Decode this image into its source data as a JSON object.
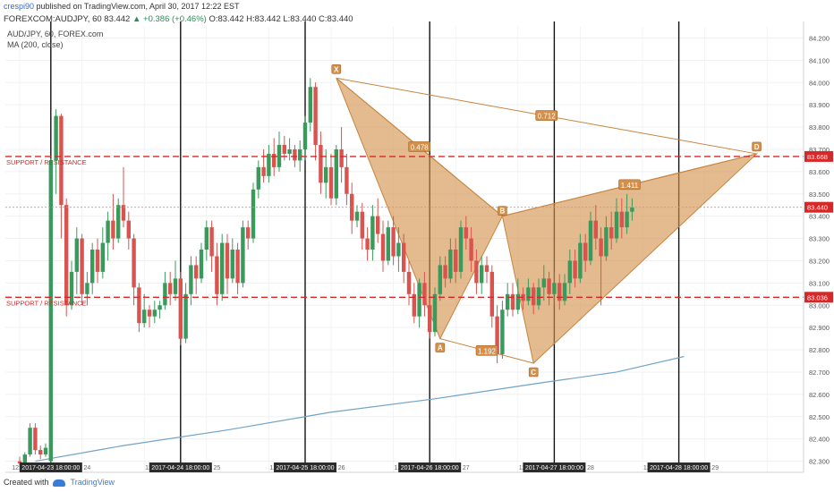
{
  "header": {
    "user": "crespi90",
    "published": " published on TradingView.com, April 30, 2017 12:22 EST",
    "ohlc_symbol": "FOREXCOM:AUDJPY, 60 ",
    "ohlc_price": "83.442",
    "ohlc_change": "▲ +0.386 (+0.46%)",
    "ohlc_values": " O:83.442 H:83.442 L:83.440 C:83.440",
    "symbol_line": "AUD/JPY, 60, FOREX.com",
    "ma_line": "MA (200, close)"
  },
  "footer": {
    "created": "Created with",
    "brand": "TradingView"
  },
  "colors": {
    "up": "#3a9a5b",
    "down": "#d9534f",
    "pattern_fill": "#d4904a",
    "pattern_stroke": "#c8843f",
    "support": "#d62828",
    "ma": "#6fa3c8",
    "session_line": "#111111",
    "price_label": "#d62828"
  },
  "chart_data": {
    "type": "candlestick",
    "symbol": "AUD/JPY",
    "interval": "60",
    "ylim": [
      82.25,
      84.25
    ],
    "y_ticks": [
      "82.300",
      "82.400",
      "82.500",
      "82.600",
      "82.700",
      "82.800",
      "82.900",
      "83.000",
      "83.100",
      "83.200",
      "83.300",
      "83.400",
      "83.500",
      "83.600",
      "83.700",
      "83.800",
      "83.900",
      "84.000",
      "84.100",
      "84.200"
    ],
    "x_labels": [
      {
        "text": "12:00",
        "i": 0
      },
      {
        "text": "2017-04-23 18:00:00",
        "i": 6,
        "highlight": true
      },
      {
        "text": "24",
        "i": 13
      },
      {
        "text": "12:",
        "i": 25
      },
      {
        "text": "2017-04-24 18:00:00",
        "i": 31,
        "highlight": true
      },
      {
        "text": "25",
        "i": 38
      },
      {
        "text": "12:",
        "i": 49
      },
      {
        "text": "2017-04-25 18:00:00",
        "i": 55,
        "highlight": true
      },
      {
        "text": "26",
        "i": 62
      },
      {
        "text": "12:",
        "i": 73
      },
      {
        "text": "2017-04-26 18:00:00",
        "i": 79,
        "highlight": true
      },
      {
        "text": "27",
        "i": 86
      },
      {
        "text": "12:",
        "i": 97
      },
      {
        "text": "2017-04-27 18:00:00",
        "i": 103,
        "highlight": true
      },
      {
        "text": "28",
        "i": 110
      },
      {
        "text": "12:",
        "i": 121
      },
      {
        "text": "2017-04-28 18:00:00",
        "i": 127,
        "highlight": true
      },
      {
        "text": "29",
        "i": 134
      }
    ],
    "session_lines": [
      6,
      31,
      55,
      79,
      103,
      127
    ],
    "current_price": {
      "value": 83.44,
      "label": "83.440"
    },
    "support_resistance": [
      {
        "value": 83.668,
        "label": "83.668",
        "text": "SUPPORT / RESISTANCE"
      },
      {
        "value": 83.036,
        "label": "83.036",
        "text": "SUPPORT / RESISTANCE"
      }
    ],
    "pattern": {
      "points": [
        {
          "name": "X",
          "i": 61,
          "price": 84.02
        },
        {
          "name": "A",
          "i": 81,
          "price": 82.85
        },
        {
          "name": "B",
          "i": 93,
          "price": 83.4
        },
        {
          "name": "C",
          "i": 99,
          "price": 82.74
        },
        {
          "name": "D",
          "i": 142,
          "price": 83.68
        }
      ],
      "ratios": [
        {
          "text": "0.478",
          "from": "X",
          "to": "B"
        },
        {
          "text": "1.192",
          "from": "A",
          "to": "C"
        },
        {
          "text": "1.411",
          "from": "B",
          "to": "D"
        },
        {
          "text": "0.712",
          "from": "X",
          "to": "D"
        }
      ]
    },
    "ma200": [
      [
        3,
        82.3
      ],
      [
        20,
        82.37
      ],
      [
        40,
        82.44
      ],
      [
        60,
        82.52
      ],
      [
        80,
        82.58
      ],
      [
        100,
        82.65
      ],
      [
        115,
        82.7
      ],
      [
        128,
        82.77
      ]
    ],
    "candles": [
      [
        82.3,
        82.29,
        82.32,
        82.28
      ],
      [
        82.29,
        82.33,
        82.34,
        82.28
      ],
      [
        82.33,
        82.45,
        82.47,
        82.32
      ],
      [
        82.45,
        82.35,
        82.47,
        82.33
      ],
      [
        82.35,
        82.33,
        82.37,
        82.31
      ],
      [
        82.33,
        82.36,
        82.38,
        82.32
      ],
      [
        82.3,
        83.65,
        83.66,
        82.28
      ],
      [
        83.65,
        83.85,
        83.88,
        83.5
      ],
      [
        83.85,
        83.45,
        83.86,
        83.3
      ],
      [
        83.45,
        83.0,
        83.48,
        82.95
      ],
      [
        83.0,
        83.15,
        83.2,
        82.98
      ],
      [
        83.15,
        83.3,
        83.35,
        83.05
      ],
      [
        83.3,
        83.05,
        83.32,
        83.0
      ],
      [
        83.05,
        83.1,
        83.15,
        83.0
      ],
      [
        83.1,
        83.25,
        83.28,
        83.05
      ],
      [
        83.25,
        83.15,
        83.3,
        83.1
      ],
      [
        83.15,
        83.28,
        83.35,
        83.12
      ],
      [
        83.28,
        83.38,
        83.42,
        83.2
      ],
      [
        83.38,
        83.3,
        83.5,
        83.25
      ],
      [
        83.3,
        83.45,
        83.48,
        83.28
      ],
      [
        83.45,
        83.38,
        83.62,
        83.35
      ],
      [
        83.38,
        83.3,
        83.42,
        83.25
      ],
      [
        83.3,
        83.08,
        83.32,
        83.0
      ],
      [
        83.08,
        82.92,
        83.1,
        82.88
      ],
      [
        82.92,
        82.98,
        83.05,
        82.9
      ],
      [
        82.98,
        82.95,
        83.0,
        82.9
      ],
      [
        82.95,
        82.98,
        83.02,
        82.92
      ],
      [
        82.98,
        83.0,
        83.02,
        82.94
      ],
      [
        83.0,
        83.1,
        83.15,
        82.98
      ],
      [
        83.1,
        83.05,
        83.15,
        83.0
      ],
      [
        83.05,
        83.12,
        83.2,
        83.02
      ],
      [
        83.12,
        82.85,
        83.15,
        82.82
      ],
      [
        82.85,
        83.05,
        83.1,
        82.83
      ],
      [
        83.05,
        83.18,
        83.22,
        83.0
      ],
      [
        83.18,
        83.12,
        83.22,
        83.05
      ],
      [
        83.12,
        83.25,
        83.28,
        83.1
      ],
      [
        83.25,
        83.35,
        83.38,
        83.2
      ],
      [
        83.35,
        83.22,
        83.38,
        83.15
      ],
      [
        83.22,
        83.05,
        83.28,
        83.0
      ],
      [
        83.05,
        83.28,
        83.32,
        83.02
      ],
      [
        83.28,
        83.12,
        83.32,
        83.05
      ],
      [
        83.12,
        83.25,
        83.3,
        83.1
      ],
      [
        83.25,
        83.1,
        83.28,
        83.05
      ],
      [
        83.1,
        83.35,
        83.38,
        83.08
      ],
      [
        83.35,
        83.3,
        83.38,
        83.25
      ],
      [
        83.3,
        83.52,
        83.55,
        83.28
      ],
      [
        83.52,
        83.62,
        83.65,
        83.48
      ],
      [
        83.62,
        83.58,
        83.7,
        83.55
      ],
      [
        83.58,
        83.68,
        83.72,
        83.55
      ],
      [
        83.68,
        83.62,
        83.75,
        83.58
      ],
      [
        83.62,
        83.72,
        83.78,
        83.6
      ],
      [
        83.72,
        83.68,
        83.76,
        83.65
      ],
      [
        83.68,
        83.7,
        83.75,
        83.65
      ],
      [
        83.7,
        83.65,
        83.72,
        83.62
      ],
      [
        83.65,
        83.7,
        83.74,
        83.6
      ],
      [
        83.7,
        83.82,
        83.85,
        83.65
      ],
      [
        83.82,
        83.98,
        84.02,
        83.78
      ],
      [
        83.98,
        83.72,
        84.0,
        83.65
      ],
      [
        83.72,
        83.55,
        83.78,
        83.5
      ],
      [
        83.55,
        83.62,
        83.7,
        83.48
      ],
      [
        83.62,
        83.48,
        83.68,
        83.45
      ],
      [
        83.48,
        83.7,
        83.72,
        83.45
      ],
      [
        83.7,
        83.62,
        83.8,
        83.55
      ],
      [
        83.62,
        83.5,
        83.68,
        83.45
      ],
      [
        83.5,
        83.38,
        83.55,
        83.32
      ],
      [
        83.38,
        83.42,
        83.45,
        83.35
      ],
      [
        83.42,
        83.3,
        83.46,
        83.25
      ],
      [
        83.3,
        83.25,
        83.35,
        83.2
      ],
      [
        83.25,
        83.4,
        83.45,
        83.2
      ],
      [
        83.4,
        83.32,
        83.48,
        83.28
      ],
      [
        83.32,
        83.2,
        83.38,
        83.15
      ],
      [
        83.2,
        83.35,
        83.38,
        83.18
      ],
      [
        83.35,
        83.22,
        83.4,
        83.18
      ],
      [
        83.22,
        83.28,
        83.35,
        83.15
      ],
      [
        83.28,
        83.15,
        83.32,
        83.1
      ],
      [
        83.15,
        83.05,
        83.2,
        83.0
      ],
      [
        83.05,
        82.95,
        83.1,
        82.92
      ],
      [
        82.95,
        83.1,
        83.12,
        82.9
      ],
      [
        83.1,
        83.0,
        83.15,
        82.95
      ],
      [
        83.0,
        82.88,
        83.05,
        82.85
      ],
      [
        82.88,
        83.05,
        83.08,
        82.86
      ],
      [
        83.05,
        83.18,
        83.22,
        83.02
      ],
      [
        83.18,
        83.12,
        83.22,
        83.08
      ],
      [
        83.12,
        83.25,
        83.3,
        83.1
      ],
      [
        83.25,
        83.15,
        83.3,
        83.1
      ],
      [
        83.15,
        83.35,
        83.38,
        83.12
      ],
      [
        83.35,
        83.3,
        83.4,
        83.25
      ],
      [
        83.3,
        83.2,
        83.35,
        83.15
      ],
      [
        83.2,
        83.1,
        83.25,
        83.05
      ],
      [
        83.1,
        83.18,
        83.22,
        83.05
      ],
      [
        83.18,
        83.15,
        83.22,
        83.1
      ],
      [
        83.15,
        82.95,
        83.18,
        82.9
      ],
      [
        82.95,
        82.78,
        83.0,
        82.74
      ],
      [
        82.78,
        82.98,
        83.02,
        82.76
      ],
      [
        82.98,
        83.05,
        83.1,
        82.95
      ],
      [
        83.05,
        82.98,
        83.1,
        82.95
      ],
      [
        82.98,
        83.05,
        83.12,
        82.96
      ],
      [
        83.05,
        83.02,
        83.08,
        82.98
      ],
      [
        83.02,
        83.08,
        83.12,
        83.0
      ],
      [
        83.08,
        83.0,
        83.1,
        82.96
      ],
      [
        83.0,
        83.08,
        83.12,
        82.98
      ],
      [
        83.08,
        83.12,
        83.18,
        83.02
      ],
      [
        83.12,
        83.05,
        83.15,
        83.0
      ],
      [
        83.05,
        83.1,
        83.15,
        83.0
      ],
      [
        83.1,
        83.02,
        83.14,
        82.98
      ],
      [
        83.02,
        83.1,
        83.14,
        83.0
      ],
      [
        83.1,
        83.2,
        83.25,
        83.05
      ],
      [
        83.2,
        83.12,
        83.25,
        83.08
      ],
      [
        83.12,
        83.28,
        83.32,
        83.1
      ],
      [
        83.28,
        83.2,
        83.32,
        83.15
      ],
      [
        83.2,
        83.38,
        83.42,
        83.18
      ],
      [
        83.38,
        83.3,
        83.45,
        83.25
      ],
      [
        83.3,
        83.22,
        83.35,
        83.0
      ],
      [
        83.22,
        83.35,
        83.4,
        83.2
      ],
      [
        83.35,
        83.3,
        83.42,
        83.25
      ],
      [
        83.3,
        83.42,
        83.48,
        83.28
      ],
      [
        83.42,
        83.35,
        83.48,
        83.3
      ],
      [
        83.35,
        83.42,
        83.5,
        83.32
      ],
      [
        83.42,
        83.44,
        83.48,
        83.38
      ]
    ]
  }
}
